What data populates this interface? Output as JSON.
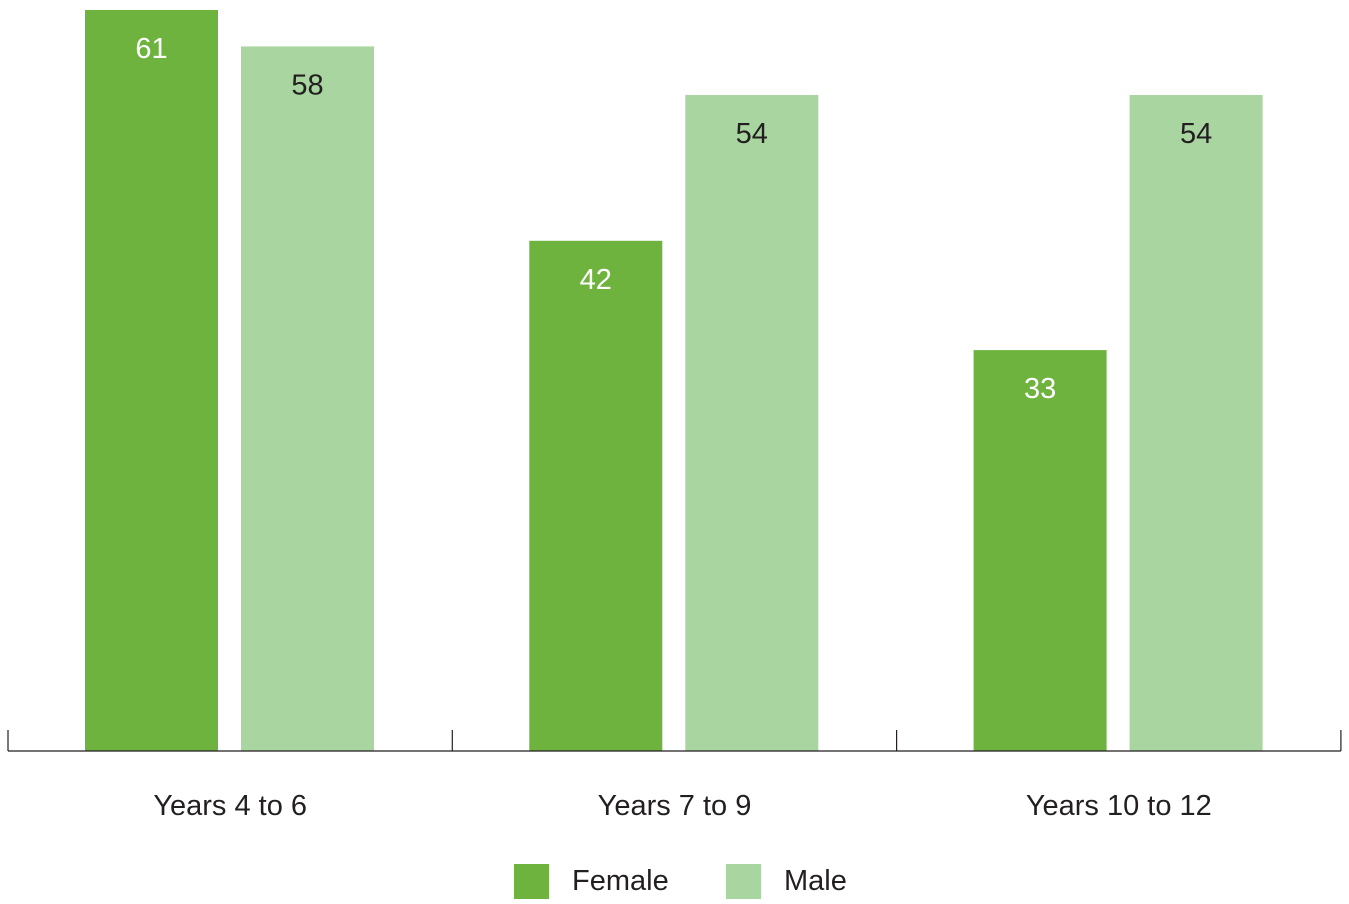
{
  "chart_data": {
    "type": "bar",
    "categories": [
      "Years 4 to 6",
      "Years 7 to 9",
      "Years 10 to 12"
    ],
    "series": [
      {
        "name": "Female",
        "values": [
          61,
          42,
          33
        ],
        "color": "#6fb33f",
        "label_color": "#ffffff"
      },
      {
        "name": "Male",
        "values": [
          58,
          54,
          54
        ],
        "color": "#a9d6a0",
        "label_color": "#231f20"
      }
    ],
    "title": "",
    "xlabel": "",
    "ylabel": "",
    "ylim": [
      0,
      61
    ],
    "grid": false,
    "legend_position": "bottom-center"
  }
}
